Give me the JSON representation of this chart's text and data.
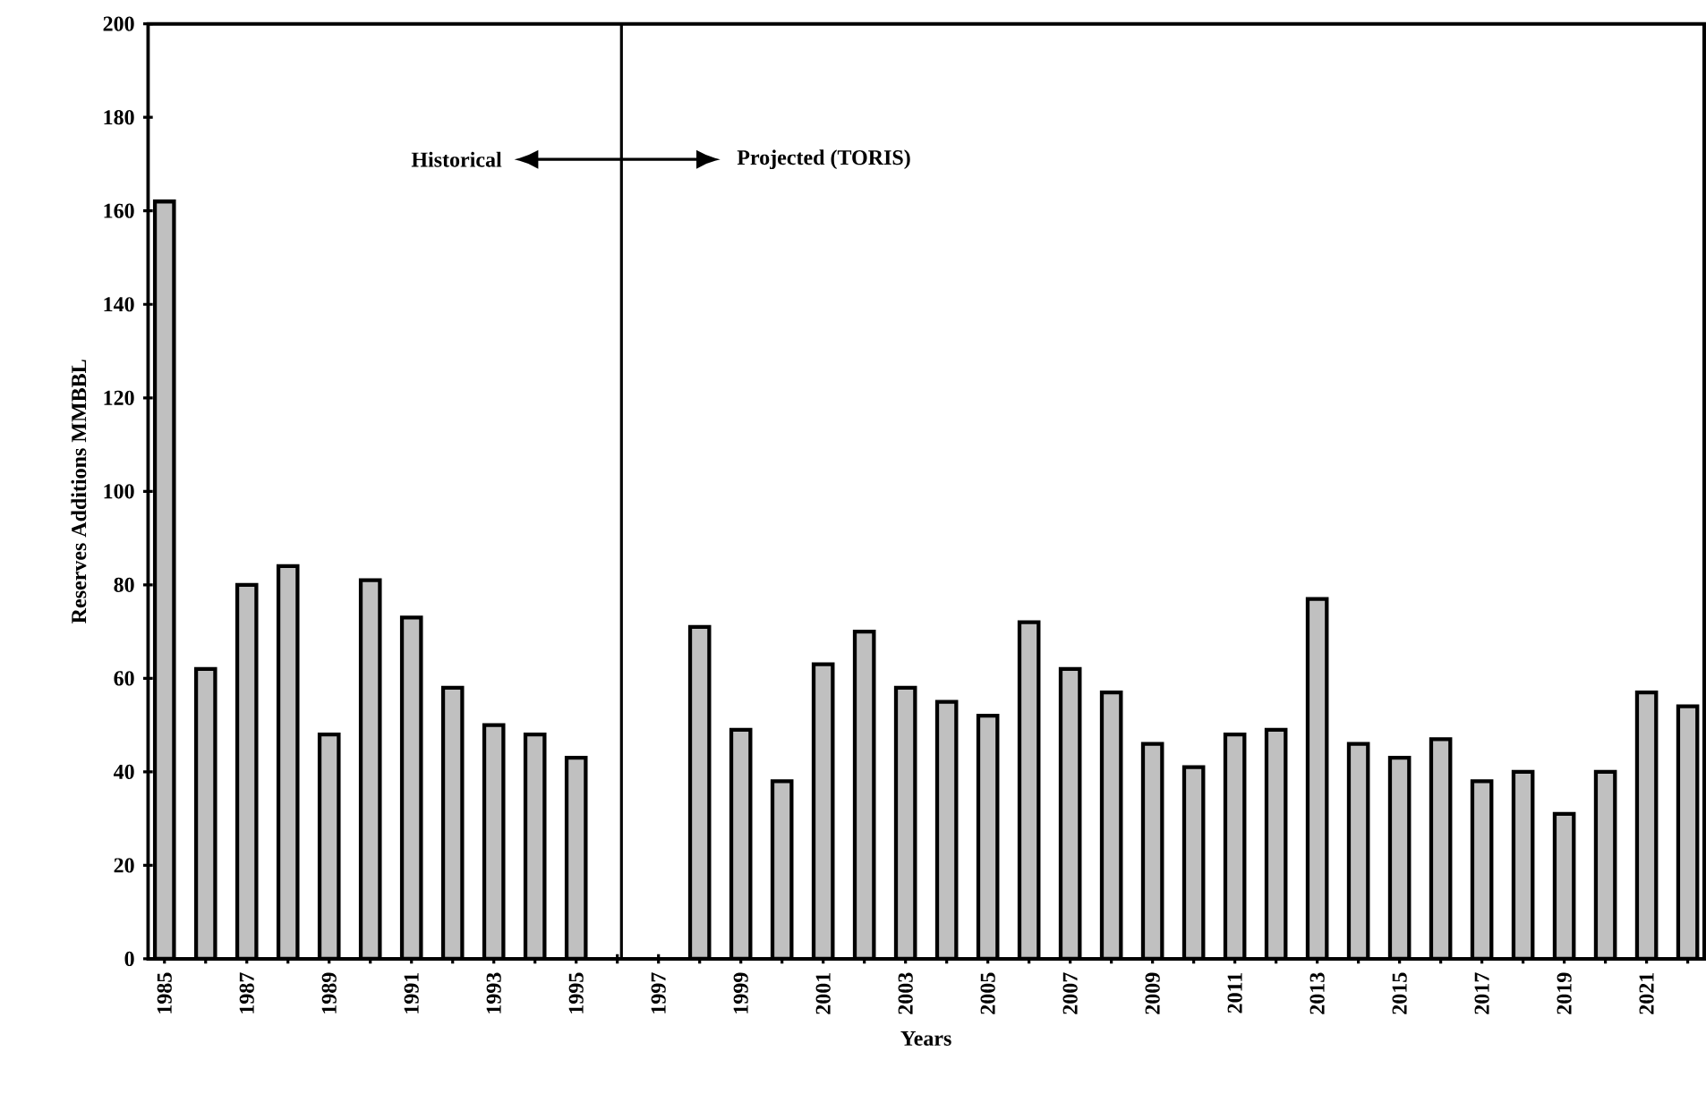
{
  "chart_data": {
    "type": "bar",
    "xlabel": "Years",
    "ylabel": "Reserves Additions MMBBL",
    "x": [
      1985,
      1986,
      1987,
      1988,
      1989,
      1990,
      1991,
      1992,
      1993,
      1994,
      1995,
      1996,
      1997,
      1998,
      1999,
      2000,
      2001,
      2002,
      2003,
      2004,
      2005,
      2006,
      2007,
      2008,
      2009,
      2010,
      2011,
      2012,
      2013,
      2014,
      2015,
      2016,
      2017,
      2018,
      2019,
      2020,
      2021,
      2022
    ],
    "values": [
      162,
      62,
      80,
      84,
      48,
      81,
      73,
      58,
      50,
      48,
      43,
      null,
      null,
      71,
      49,
      38,
      63,
      70,
      58,
      55,
      52,
      72,
      62,
      57,
      46,
      41,
      48,
      49,
      77,
      46,
      43,
      47,
      38,
      40,
      31,
      40,
      57,
      54
    ],
    "color": "#c0c0c0",
    "xlim": [
      1984.6,
      2022.4
    ],
    "xticks": [
      1985,
      {
        "value": 1986,
        "label": null
      },
      1987,
      {
        "value": 1988,
        "label": null
      },
      1989,
      {
        "value": 1990,
        "label": null
      },
      1991,
      {
        "value": 1992,
        "label": null
      },
      1993,
      {
        "value": 1994,
        "label": null
      },
      1995,
      {
        "value": 1996,
        "label": null
      },
      1997,
      {
        "value": 1998,
        "label": null
      },
      1999,
      {
        "value": 2000,
        "label": null
      },
      2001,
      {
        "value": 2002,
        "label": null
      },
      2003,
      {
        "value": 2004,
        "label": null
      },
      2005,
      {
        "value": 2006,
        "label": null
      },
      2007,
      {
        "value": 2008,
        "label": null
      },
      2009,
      {
        "value": 2010,
        "label": null
      },
      2011,
      {
        "value": 2012,
        "label": null
      },
      2013,
      {
        "value": 2014,
        "label": null
      },
      2015,
      {
        "value": 2016,
        "label": null
      },
      2017,
      {
        "value": 2018,
        "label": null
      },
      2019,
      {
        "value": 2020,
        "label": null
      },
      2021,
      {
        "value": 2022,
        "label": null
      }
    ],
    "ylim": [
      0,
      200
    ],
    "yticks": [
      0,
      20,
      40,
      60,
      80,
      100,
      120,
      140,
      160,
      180,
      200
    ],
    "ref_lines": [
      {
        "axis": "x",
        "value": 1996.1,
        "color": "#000000"
      }
    ],
    "annotations": [
      "Historical",
      "Projected (TORIS)"
    ],
    "grid": false
  }
}
